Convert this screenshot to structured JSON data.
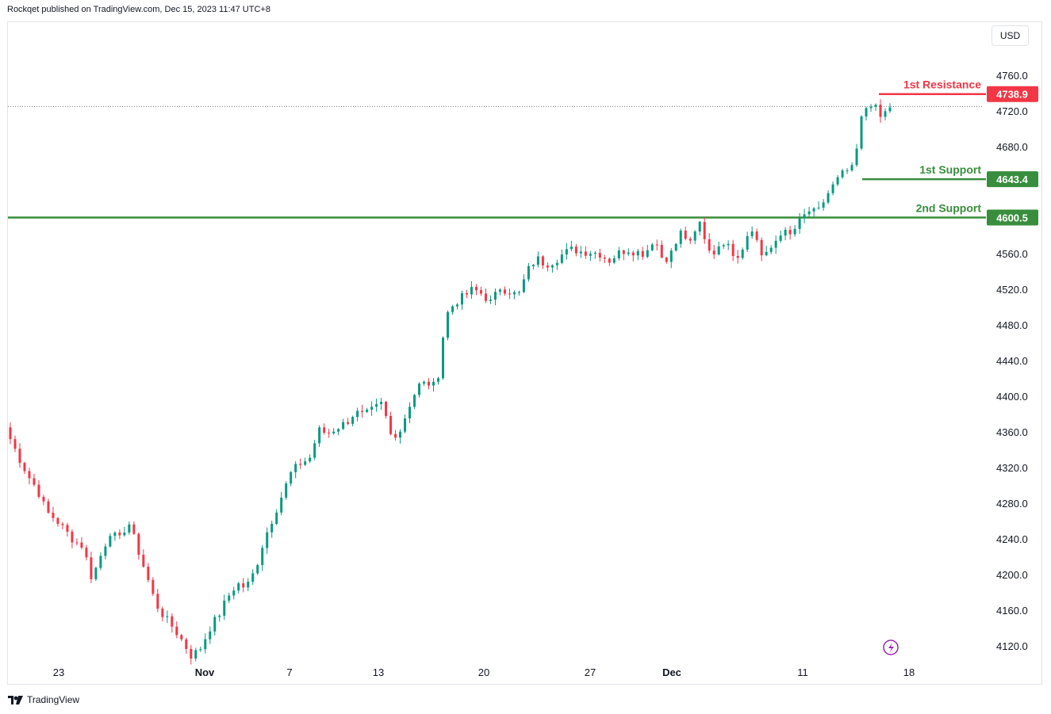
{
  "attribution": "Rockqet published on TradingView.com, Dec 15, 2023 11:47 UTC+8",
  "currency": "USD",
  "footer_brand": "TradingView",
  "colors": {
    "up": "#089981",
    "down": "#f23645",
    "support": "#388e3c",
    "resistance": "#f23645"
  },
  "chart_data": {
    "type": "candlestick",
    "title": "",
    "y_axis": {
      "ticks": [
        "4760.0",
        "4720.0",
        "4680.0",
        "4640.0",
        "4600.0",
        "4560.0",
        "4520.0",
        "4480.0",
        "4440.0",
        "4400.0",
        "4360.0",
        "4320.0",
        "4280.0",
        "4240.0",
        "4200.0",
        "4160.0",
        "4120.0"
      ],
      "range": [
        4107,
        4780
      ]
    },
    "x_axis": {
      "labels": [
        "23",
        "Nov",
        "7",
        "13",
        "20",
        "27",
        "Dec",
        "11",
        "18"
      ],
      "bold_labels": [
        "Nov",
        "Dec"
      ]
    },
    "levels": [
      {
        "label": "1st Resistance",
        "value": "4738.9",
        "kind": "resistance"
      },
      {
        "label": "1st Support",
        "value": "4643.4",
        "kind": "support"
      },
      {
        "label": "2nd Support",
        "value": "4600.5",
        "kind": "support"
      }
    ],
    "last_price_line": 4725,
    "series_anchors": [
      4352,
      4330,
      4310,
      4295,
      4270,
      4262,
      4250,
      4238,
      4232,
      4195,
      4222,
      4248,
      4238,
      4260,
      4230,
      4200,
      4168,
      4152,
      4140,
      4125,
      4108,
      4118,
      4140,
      4155,
      4175,
      4190,
      4185,
      4205,
      4240,
      4265,
      4290,
      4315,
      4325,
      4330,
      4362,
      4358,
      4365,
      4370,
      4382,
      4378,
      4385,
      4392,
      4355,
      4362,
      4390,
      4412,
      4415,
      4410,
      4490,
      4505,
      4512,
      4520,
      4515,
      4505,
      4522,
      4518,
      4512,
      4540,
      4555,
      4548,
      4552,
      4560,
      4565,
      4562,
      4562,
      4560,
      4552,
      4560,
      4565,
      4562,
      4560,
      4578,
      4552,
      4562,
      4585,
      4570,
      4595,
      4565,
      4562,
      4580,
      4552,
      4575,
      4588,
      4552,
      4568,
      4585,
      4580,
      4595,
      4608,
      4605,
      4625,
      4640,
      4652,
      4655,
      4720,
      4730,
      4712,
      4725
    ]
  }
}
